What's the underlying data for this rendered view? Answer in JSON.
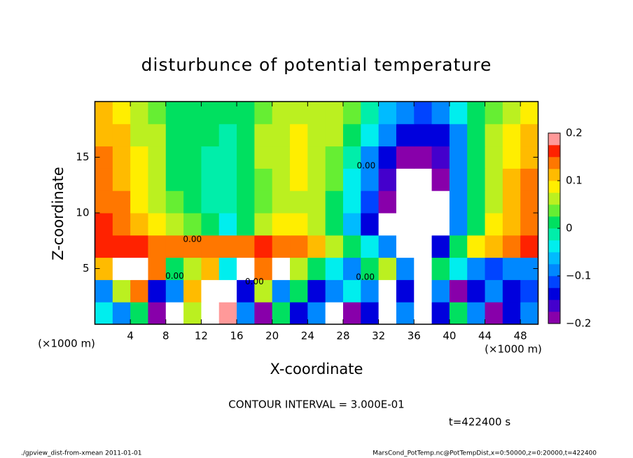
{
  "chart_data": {
    "type": "heatmap",
    "title": "disturbunce of potential temperature",
    "xlabel": "X-coordinate",
    "ylabel": "Z-coordinate",
    "x_unit": "(×1000 m)",
    "y_unit": "(×1000 m)",
    "xlim": [
      0,
      50
    ],
    "ylim": [
      0,
      20
    ],
    "xticks": [
      4,
      8,
      12,
      16,
      20,
      24,
      28,
      32,
      36,
      40,
      44,
      48
    ],
    "yticks": [
      5,
      10,
      15
    ],
    "clim": [
      -0.2,
      0.2
    ],
    "cticks": [
      {
        "value": -0.2,
        "label": "−0.2"
      },
      {
        "value": -0.1,
        "label": "−0.1"
      },
      0,
      0.1,
      0.2
    ],
    "colors": [
      "#8800aa",
      "#4400cc",
      "#0000dd",
      "#0044ff",
      "#0088ff",
      "#00bbff",
      "#00eeee",
      "#00eeaa",
      "#00e060",
      "#66ee33",
      "#bbf020",
      "#ffee00",
      "#ffbb00",
      "#ff7700",
      "#ff2200",
      "#ff9999"
    ],
    "out_of_range_color": "#ffffff",
    "z": [
      [
        -0.05,
        -0.1,
        0.0,
        -0.2,
        -0.25,
        0.05,
        0.25,
        0.2,
        -0.1,
        -0.2,
        0.0,
        -0.15,
        -0.1,
        -0.25,
        -0.2,
        -0.15,
        0.25,
        -0.1,
        0.25,
        -0.15,
        0.0,
        -0.1,
        -0.2,
        -0.15,
        -0.1
      ],
      [
        -0.1,
        0.05,
        0.15,
        -0.15,
        -0.1,
        0.1,
        0.25,
        0.25,
        -0.15,
        0.05,
        -0.1,
        0.0,
        -0.15,
        -0.1,
        -0.05,
        -0.1,
        0.25,
        -0.15,
        0.25,
        -0.1,
        -0.2,
        -0.15,
        -0.1,
        -0.15,
        -0.12
      ],
      [
        0.1,
        0.25,
        0.25,
        0.15,
        0.0,
        0.05,
        0.1,
        -0.05,
        0.25,
        0.15,
        0.25,
        0.05,
        0.0,
        -0.05,
        -0.1,
        0.0,
        0.05,
        -0.1,
        0.25,
        0.0,
        -0.05,
        -0.1,
        -0.12,
        -0.1,
        -0.08
      ],
      [
        0.17,
        0.16,
        0.16,
        0.15,
        0.14,
        0.15,
        0.15,
        0.14,
        0.15,
        0.16,
        0.15,
        0.14,
        0.1,
        0.05,
        0.0,
        -0.05,
        -0.1,
        -0.25,
        -0.25,
        -0.15,
        0.0,
        0.08,
        0.12,
        0.15,
        0.16
      ],
      [
        0.16,
        0.15,
        0.12,
        0.09,
        0.06,
        0.03,
        0.0,
        -0.03,
        0.0,
        0.05,
        0.08,
        0.09,
        0.07,
        0.02,
        -0.06,
        -0.14,
        -0.21,
        -0.25,
        -0.25,
        -0.24,
        -0.08,
        0.02,
        0.08,
        0.12,
        0.15
      ],
      [
        0.15,
        0.13,
        0.09,
        0.06,
        0.03,
        0.0,
        -0.02,
        -0.02,
        0.0,
        0.04,
        0.06,
        0.07,
        0.06,
        0.02,
        -0.05,
        -0.12,
        -0.19,
        -0.25,
        -0.25,
        -0.22,
        -0.1,
        0.0,
        0.06,
        0.11,
        0.14
      ],
      [
        0.14,
        0.12,
        0.09,
        0.05,
        0.02,
        0.0,
        -0.01,
        -0.01,
        0.01,
        0.04,
        0.07,
        0.08,
        0.06,
        0.03,
        -0.03,
        -0.1,
        -0.17,
        -0.22,
        -0.25,
        -0.19,
        -0.1,
        0.0,
        0.06,
        0.1,
        0.13
      ],
      [
        0.13,
        0.11,
        0.08,
        0.05,
        0.02,
        0.0,
        -0.01,
        -0.01,
        0.02,
        0.05,
        0.07,
        0.08,
        0.07,
        0.04,
        -0.02,
        -0.08,
        -0.14,
        -0.18,
        -0.19,
        -0.16,
        -0.09,
        0.0,
        0.05,
        0.09,
        0.12
      ],
      [
        0.12,
        0.1,
        0.07,
        0.05,
        0.02,
        0.0,
        0.0,
        -0.01,
        0.02,
        0.05,
        0.07,
        0.08,
        0.07,
        0.05,
        0.0,
        -0.05,
        -0.1,
        -0.14,
        -0.15,
        -0.13,
        -0.08,
        0.0,
        0.05,
        0.08,
        0.11
      ],
      [
        0.1,
        0.08,
        0.06,
        0.04,
        0.02,
        0.0,
        0.0,
        0.0,
        0.02,
        0.04,
        0.06,
        0.07,
        0.07,
        0.06,
        0.03,
        -0.02,
        -0.06,
        -0.1,
        -0.12,
        -0.1,
        -0.05,
        0.0,
        0.04,
        0.07,
        0.09
      ]
    ],
    "contour_labels": [
      {
        "text": "0.00",
        "x": 30.6,
        "y": 14.2
      },
      {
        "text": "0.00",
        "x": 11,
        "y": 7.6
      },
      {
        "text": "0.00",
        "x": 9,
        "y": 4.3
      },
      {
        "text": "0.00",
        "x": 18,
        "y": 3.8
      },
      {
        "text": "0.00",
        "x": 30.5,
        "y": 4.2
      }
    ],
    "annotation": "CONTOUR INTERVAL = 3.000E-01",
    "time_label": "t=422400 s",
    "footer_left": "./gpview_dist-from-xmean  2011-01-01",
    "footer_right": "MarsCond_PotTemp.nc@PotTempDist,x=0:50000,z=0:20000,t=422400"
  }
}
